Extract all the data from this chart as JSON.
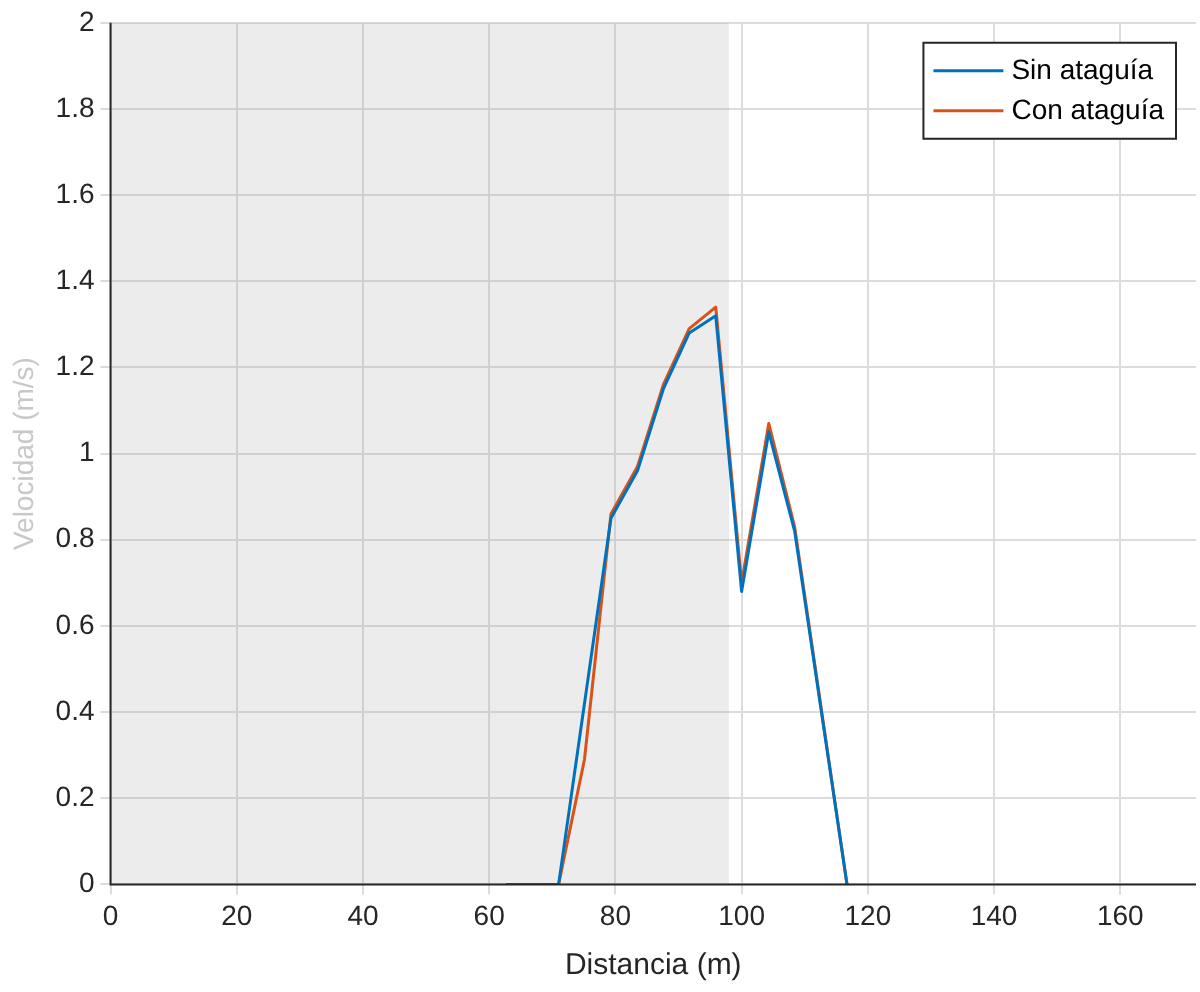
{
  "chart_data": {
    "type": "line",
    "xlabel": "Distancia (m)",
    "ylabel": "Velocidad (m/s)",
    "xlim": [
      0,
      172
    ],
    "xticks": [
      0,
      20,
      40,
      60,
      80,
      100,
      120,
      140,
      160
    ],
    "ylim": [
      0,
      2
    ],
    "yticks": [
      0,
      0.2,
      0.4,
      0.6,
      0.8,
      1,
      1.2,
      1.4,
      1.6,
      1.8,
      2
    ],
    "grid": true,
    "legend": "top right",
    "marker": "none",
    "line_style": "solid",
    "bands": [
      {
        "axis": "x",
        "from": 0,
        "to": 98,
        "color": "#a0a0a0"
      }
    ],
    "series": [
      {
        "name": "Sin ataguía",
        "color": "#0072bd",
        "x": [
          62.7,
          71,
          79.3,
          83.5,
          87.6,
          91.7,
          95.9,
          100,
          104.3,
          108.4,
          116.7
        ],
        "values": [
          0,
          0,
          0.85,
          0.96,
          1.15,
          1.28,
          1.32,
          0.68,
          1.05,
          0.82,
          0
        ]
      },
      {
        "name": "Con ataguía",
        "color": "#d95319",
        "x": [
          62.7,
          71,
          75.1,
          79.3,
          83.5,
          87.6,
          91.7,
          95.9,
          100,
          104.3,
          108.4,
          116.7
        ],
        "values": [
          0,
          0,
          0.29,
          0.86,
          0.97,
          1.16,
          1.29,
          1.34,
          0.7,
          1.07,
          0.83,
          0
        ]
      }
    ]
  }
}
